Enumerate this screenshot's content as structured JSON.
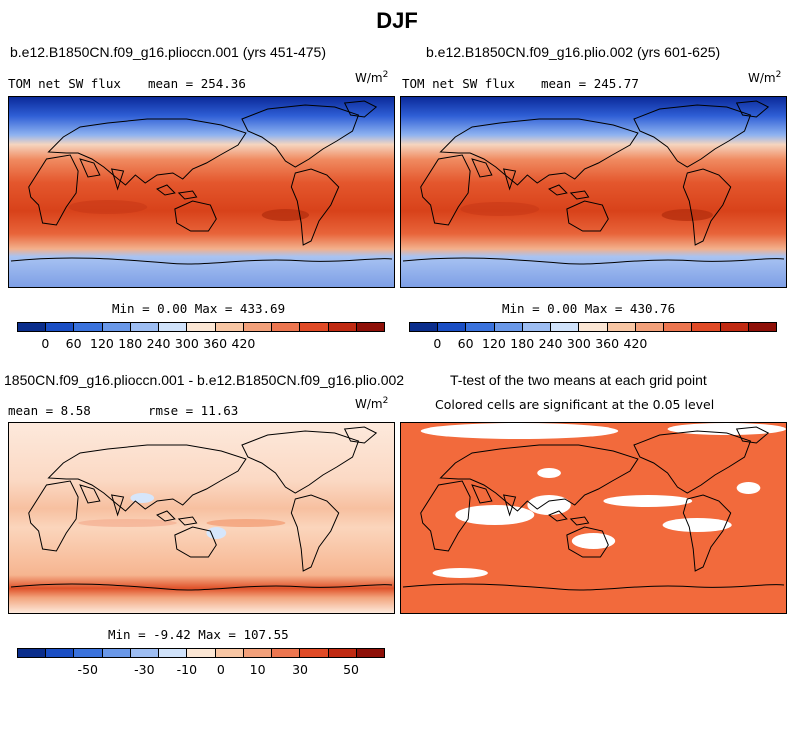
{
  "title": "DJF",
  "panels": [
    {
      "title": "b.e12.B1850CN.f09_g16.plioccn.001 (yrs 451-475)",
      "left_label": "TOM net SW flux",
      "stat_label": "mean",
      "stat_value": "254.36",
      "units_base": "W/m",
      "units_exp": "2",
      "minmax": "Min =   0.00 Max = 433.69"
    },
    {
      "title": "b.e12.B1850CN.f09_g16.plio.002 (yrs 601-625)",
      "left_label": "TOM net SW flux",
      "stat_label": "mean",
      "stat_value": "245.77",
      "units_base": "W/m",
      "units_exp": "2",
      "minmax": "Min =   0.00 Max = 430.76"
    },
    {
      "title": "1850CN.f09_g16.plioccn.001 - b.e12.B1850CN.f09_g16.plio.002",
      "mean_text": "mean =   8.58",
      "rmse_text": "rmse =  11.63",
      "units_base": "W/m",
      "units_exp": "2",
      "minmax": "Min =  -9.42 Max = 107.55"
    },
    {
      "title": "T-test of the two means at each grid point",
      "subtitle": "Colored cells are significant at the 0.05 level"
    }
  ],
  "colorbar_abs": {
    "colors": [
      "#0a2d8c",
      "#1a4ec4",
      "#3a72dc",
      "#6a98e8",
      "#9dbdf2",
      "#d0e2fa",
      "#fbe6d4",
      "#f8c6a4",
      "#f2a07a",
      "#ec7650",
      "#e04a26",
      "#c02a12",
      "#8e1008"
    ],
    "ticks": [
      "0",
      "60",
      "120",
      "180",
      "240",
      "300",
      "360",
      "420"
    ]
  },
  "colorbar_diff": {
    "colors": [
      "#0a2d8c",
      "#1a4ec4",
      "#3a72dc",
      "#6a98e8",
      "#9dbdf2",
      "#d0e2fa",
      "#fbe6d4",
      "#f8c6a4",
      "#f2a07a",
      "#ec7650",
      "#e04a26",
      "#c02a12",
      "#8e1008"
    ],
    "ticks": [
      "-50",
      "-30",
      "-10",
      "0",
      "10",
      "30",
      "50"
    ]
  },
  "ttest_color": "#f26a3c"
}
